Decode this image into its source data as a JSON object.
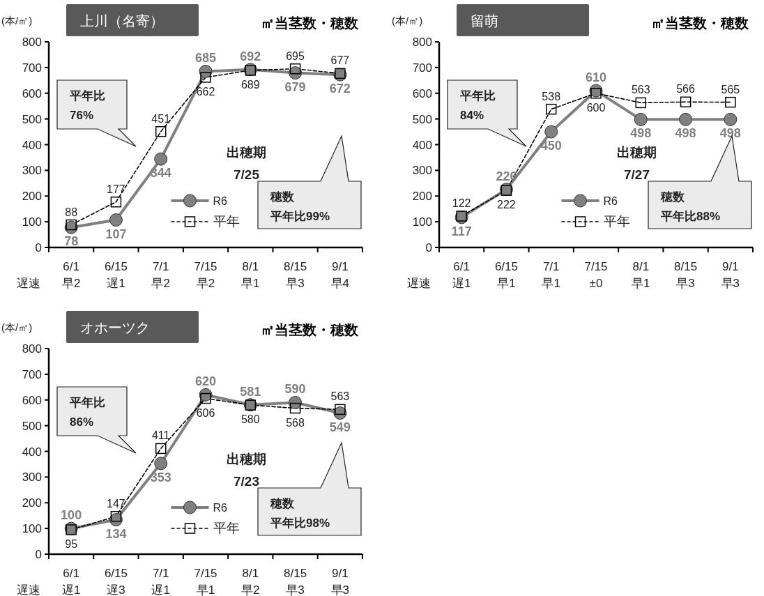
{
  "chart_data": [
    {
      "type": "line",
      "title": "㎡当茎数・穂数",
      "subtitle": "上川（名寄）",
      "ylabel": "(本/㎡)",
      "xlabel": "遅速",
      "categories": [
        "6/1\n早2",
        "6/15\n遅1",
        "7/1\n早2",
        "7/15\n早2",
        "8/1\n早1",
        "8/15\n早3",
        "9/1\n早4"
      ],
      "ylim": [
        0,
        800
      ],
      "yticks": [
        0,
        100,
        200,
        300,
        400,
        500,
        600,
        700,
        800
      ],
      "legend": "bottom",
      "data_labels": true,
      "series": [
        {
          "name": "R6",
          "color": "#808080",
          "marker": "circle",
          "line_style": "solid",
          "values": [
            78,
            107,
            344,
            685,
            692,
            679,
            672
          ]
        },
        {
          "name": "平年",
          "color": "#000000",
          "marker": "square",
          "line_style": "dashed",
          "values": [
            88,
            177,
            451,
            662,
            689,
            695,
            677
          ]
        }
      ],
      "annotations": [
        "平年比\n76%",
        "出穂期\n7/25",
        "穂数",
        "平年比99%"
      ]
    },
    {
      "type": "line",
      "title": "㎡当茎数・穂数",
      "subtitle": "留萌",
      "ylabel": "(本/㎡)",
      "xlabel": "遅速",
      "categories": [
        "6/1\n遅1",
        "6/15\n早1",
        "7/1\n早1",
        "7/15\n±0",
        "8/1\n早1",
        "8/15\n早3",
        "9/1\n早3"
      ],
      "ylim": [
        0,
        800
      ],
      "yticks": [
        0,
        100,
        200,
        300,
        400,
        500,
        600,
        700,
        800
      ],
      "legend": "bottom",
      "data_labels": true,
      "series": [
        {
          "name": "R6",
          "color": "#808080",
          "marker": "circle",
          "line_style": "solid",
          "values": [
            117,
            226,
            450,
            610,
            498,
            498,
            498
          ]
        },
        {
          "name": "平年",
          "color": "#000000",
          "marker": "square",
          "line_style": "dashed",
          "values": [
            122,
            222,
            538,
            600,
            563,
            566,
            565
          ]
        }
      ],
      "annotations": [
        "平年比\n84%",
        "出穂期\n7/27",
        "穂数",
        "平年比88%"
      ]
    },
    {
      "type": "line",
      "title": "㎡当茎数・穂数",
      "subtitle": "オホーツク",
      "ylabel": "(本/㎡)",
      "xlabel": "遅速",
      "categories": [
        "6/1\n遅1",
        "6/15\n遅3",
        "7/1\n遅1",
        "7/15\n早1",
        "8/1\n早2",
        "8/15\n早3",
        "9/1\n早3"
      ],
      "ylim": [
        0,
        800
      ],
      "yticks": [
        0,
        100,
        200,
        300,
        400,
        500,
        600,
        700,
        800
      ],
      "legend": "bottom",
      "data_labels": true,
      "series": [
        {
          "name": "R6",
          "color": "#808080",
          "marker": "circle",
          "line_style": "solid",
          "values": [
            100,
            134,
            353,
            620,
            581,
            590,
            549
          ]
        },
        {
          "name": "平年",
          "color": "#000000",
          "marker": "square",
          "line_style": "dashed",
          "values": [
            95,
            147,
            411,
            606,
            580,
            568,
            563
          ]
        }
      ],
      "annotations": [
        "平年比\n86%",
        "出穂期\n7/23",
        "穂数",
        "平年比98%"
      ]
    }
  ]
}
